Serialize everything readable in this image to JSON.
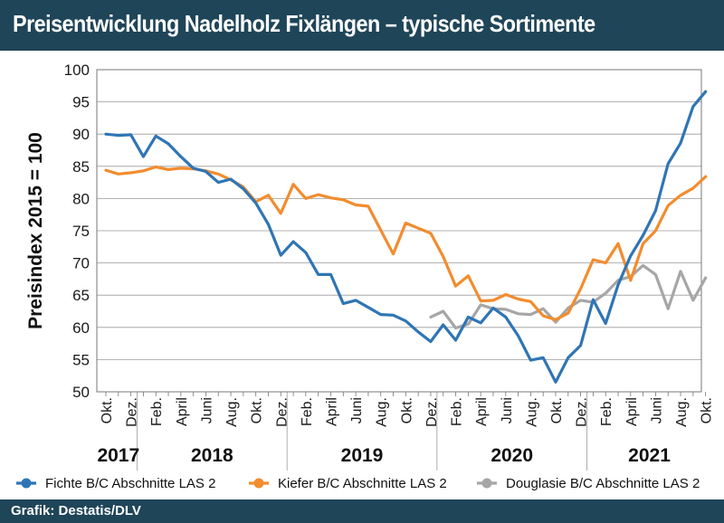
{
  "header": {
    "title": "Preisentwicklung Nadelholz Fixlängen – typische Sortimente"
  },
  "footer": {
    "source": "Grafik: Destatis/DLV"
  },
  "colors": {
    "bar_bg": "#1f4559",
    "fichte": "#2f75b5",
    "kiefer": "#f28c2e",
    "douglasie": "#a6a6a6"
  },
  "chart_data": {
    "type": "line",
    "title": "",
    "ylabel": "Preisindex 2015 = 100",
    "xlabel": "",
    "ylim": [
      50,
      100
    ],
    "yticks": [
      50,
      55,
      60,
      65,
      70,
      75,
      80,
      85,
      90,
      95,
      100
    ],
    "grid": true,
    "legend_position": "bottom",
    "x": [
      "2017-10",
      "2017-11",
      "2017-12",
      "2018-01",
      "2018-02",
      "2018-03",
      "2018-04",
      "2018-05",
      "2018-06",
      "2018-07",
      "2018-08",
      "2018-09",
      "2018-10",
      "2018-11",
      "2018-12",
      "2019-01",
      "2019-02",
      "2019-03",
      "2019-04",
      "2019-05",
      "2019-06",
      "2019-07",
      "2019-08",
      "2019-09",
      "2019-10",
      "2019-11",
      "2019-12",
      "2020-01",
      "2020-02",
      "2020-03",
      "2020-04",
      "2020-05",
      "2020-06",
      "2020-07",
      "2020-08",
      "2020-09",
      "2020-10",
      "2020-11",
      "2020-12",
      "2021-01",
      "2021-02",
      "2021-03",
      "2021-04",
      "2021-05",
      "2021-06",
      "2021-07",
      "2021-08",
      "2021-09",
      "2021-10"
    ],
    "x_tick_labels": [
      "Okt.",
      "Dez.",
      "Feb.",
      "April",
      "Juni",
      "Aug.",
      "Okt.",
      "Dez.",
      "Feb.",
      "April",
      "Juni",
      "Aug.",
      "Okt.",
      "Dez.",
      "Feb.",
      "April",
      "Juni",
      "Aug.",
      "Okt.",
      "Dez.",
      "Feb.",
      "April",
      "Juni",
      "Aug.",
      "Okt."
    ],
    "years": [
      "2017",
      "2018",
      "2019",
      "2020",
      "2021"
    ],
    "series": [
      {
        "name": "Fichte B/C Abschnitte LAS 2",
        "values": [
          90,
          89.8,
          89.9,
          86.5,
          89.7,
          88.5,
          86.5,
          84.7,
          84.2,
          82.5,
          83,
          81.5,
          79.3,
          76,
          71.2,
          73.3,
          71.6,
          68.2,
          68.2,
          63.7,
          64.2,
          63.1,
          62,
          61.9,
          61,
          59.3,
          57.8,
          60.4,
          58,
          61.6,
          60.7,
          63,
          61.6,
          58.7,
          54.9,
          55.3,
          51.5,
          55.3,
          57.2,
          64.3,
          60.6,
          66.6,
          71.1,
          74.3,
          78.1,
          85.4,
          88.6,
          94.3,
          96.6
        ]
      },
      {
        "name": "Kiefer B/C Abschnitte LAS 2",
        "values": [
          84.4,
          83.8,
          84,
          84.3,
          84.9,
          84.5,
          84.7,
          84.6,
          84.3,
          83.8,
          82.9,
          81.8,
          79.5,
          80.5,
          77.7,
          82.2,
          80,
          80.6,
          80.1,
          79.8,
          79,
          78.8,
          75.1,
          71.4,
          76.2,
          75.4,
          74.6,
          71,
          66.4,
          68,
          64.1,
          64.2,
          65.1,
          64.4,
          64,
          61.8,
          61.2,
          62.2,
          66,
          70.5,
          70,
          73,
          67.3,
          73,
          75,
          78.9,
          80.5,
          81.6,
          83.4
        ]
      },
      {
        "name": "Douglasie B/C Abschnitte LAS 2",
        "values": [
          null,
          null,
          null,
          null,
          null,
          null,
          null,
          null,
          null,
          null,
          null,
          null,
          null,
          null,
          null,
          null,
          null,
          null,
          null,
          null,
          null,
          null,
          null,
          null,
          null,
          null,
          61.6,
          62.5,
          59.9,
          60.5,
          63.5,
          62.9,
          62.8,
          62.1,
          62,
          62.9,
          60.8,
          63,
          64.2,
          63.9,
          65.3,
          67.3,
          67.9,
          69.6,
          68.2,
          62.9,
          68.7,
          64.2,
          67.7
        ]
      }
    ]
  }
}
